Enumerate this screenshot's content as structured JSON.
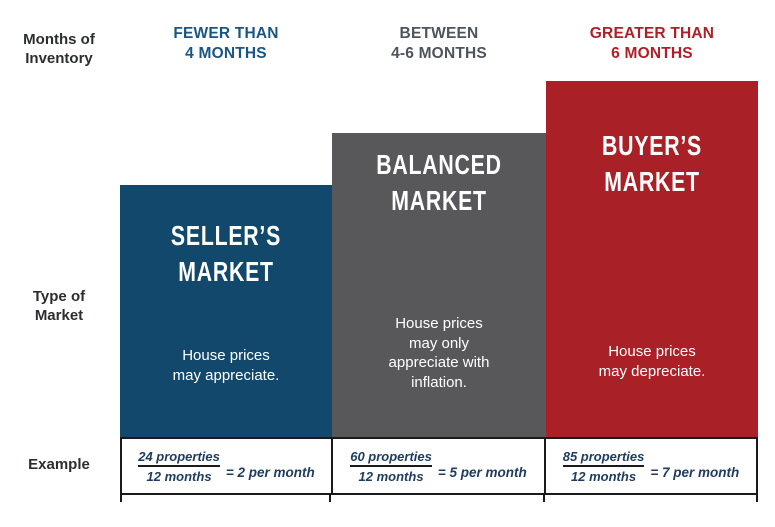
{
  "left_labels": {
    "months_of_inventory": [
      "Months of",
      "Inventory"
    ],
    "type_of_market": [
      "Type of",
      "Market"
    ],
    "example": "Example"
  },
  "columns": [
    {
      "header": [
        "FEWER THAN",
        "4 MONTHS"
      ],
      "title": [
        "SELLER’S",
        "MARKET"
      ],
      "body": [
        "House prices",
        "may appreciate."
      ],
      "example": {
        "numerator": "24 properties",
        "denominator": "12 months",
        "result": "= 2 per month"
      }
    },
    {
      "header": [
        "BETWEEN",
        "4-6 MONTHS"
      ],
      "title": [
        "BALANCED",
        "MARKET"
      ],
      "body": [
        "House prices",
        "may only",
        "appreciate with",
        "inflation."
      ],
      "example": {
        "numerator": "60 properties",
        "denominator": "12 months",
        "result": "= 5 per month"
      }
    },
    {
      "header": [
        "GREATER THAN",
        "6 MONTHS"
      ],
      "title": [
        "BUYER’S",
        "MARKET"
      ],
      "body": [
        "House prices",
        "may depreciate."
      ],
      "example": {
        "numerator": "85 properties",
        "denominator": "12 months",
        "result": "= 7 per month"
      }
    }
  ],
  "colors": {
    "seller_box": "#12486B",
    "balanced_box": "#58585A",
    "buyer_box": "#A92127",
    "seller_header_text": "#1A5583",
    "balanced_header_text": "#4E545B",
    "buyer_header_text": "#B01E28",
    "label_text": "#2B2E31",
    "example_text": "#1E3C5F",
    "table_border": "#1A1A1A"
  }
}
